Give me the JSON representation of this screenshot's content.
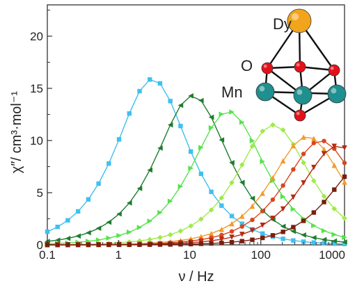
{
  "chart_data": {
    "type": "line",
    "xlabel": "ν / Hz",
    "ylabel": "χ″/ cm³·mol⁻¹",
    "xscale": "log",
    "xlim": [
      0.1,
      1500
    ],
    "ylim": [
      0,
      23
    ],
    "xticks": [
      {
        "value": 0.1,
        "label": "0.1"
      },
      {
        "value": 1,
        "label": "1"
      },
      {
        "value": 10,
        "label": "10"
      },
      {
        "value": 100,
        "label": "100"
      },
      {
        "value": 1000,
        "label": "1000"
      }
    ],
    "yticks": [
      {
        "value": 0,
        "label": "0"
      },
      {
        "value": 5,
        "label": "5"
      },
      {
        "value": 10,
        "label": "10"
      },
      {
        "value": 15,
        "label": "15"
      },
      {
        "value": 20,
        "label": "20"
      }
    ],
    "series": [
      {
        "color": "#3fc0ef",
        "marker": "square",
        "peak_x": 3.0,
        "peak_y": 15.9,
        "width": 0.95
      },
      {
        "color": "#1e7d2e",
        "marker": "triangle-left",
        "peak_x": 11.0,
        "peak_y": 14.3,
        "width": 0.95
      },
      {
        "color": "#55e34a",
        "marker": "triangle-right",
        "peak_x": 35.0,
        "peak_y": 12.8,
        "width": 0.95
      },
      {
        "color": "#9fea4a",
        "marker": "diamond",
        "peak_x": 150.0,
        "peak_y": 11.5,
        "width": 0.95
      },
      {
        "color": "#f39a2b",
        "marker": "triangle-up",
        "peak_x": 450.0,
        "peak_y": 10.4,
        "width": 0.95
      },
      {
        "color": "#d9461e",
        "marker": "circle",
        "peak_x": 700.0,
        "peak_y": 10.0,
        "width": 0.95
      },
      {
        "color": "#b52a14",
        "marker": "triangle-down",
        "peak_x": 1200.0,
        "peak_y": 9.5,
        "width": 0.95
      },
      {
        "color": "#7a1e0e",
        "marker": "square",
        "peak_x": 3000.0,
        "peak_y": 8.0,
        "width": 0.95
      }
    ]
  },
  "inset": {
    "labels": {
      "dy": "Dy",
      "o": "O",
      "mn": "Mn"
    },
    "colors": {
      "dy": "#f2a51c",
      "o": "#e3121a",
      "mn": "#1f8f8f",
      "bond": "#111111"
    }
  }
}
